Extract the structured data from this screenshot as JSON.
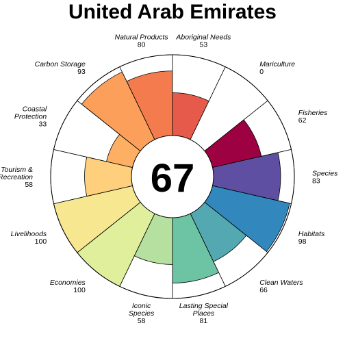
{
  "chart_data": {
    "type": "flower",
    "title": "United Arab Emirates",
    "center_score": "67",
    "max_score": 100,
    "petals": [
      {
        "label": [
          "Natural Products"
        ],
        "value": 80,
        "color": "#f47b4d"
      },
      {
        "label": [
          "Aboriginal Needs"
        ],
        "value": 53,
        "color": "#e65a4b"
      },
      {
        "label": [
          "Mariculture"
        ],
        "value": 0,
        "color": "#d53e4f"
      },
      {
        "label": [
          "Fisheries"
        ],
        "value": 62,
        "color": "#9e0142"
      },
      {
        "label": [
          "Species"
        ],
        "value": 83,
        "color": "#5e4fa2"
      },
      {
        "label": [
          "Habitats"
        ],
        "value": 98,
        "color": "#3288bd"
      },
      {
        "label": [
          "Clean Waters"
        ],
        "value": 66,
        "color": "#53a8b2"
      },
      {
        "label": [
          "Lasting Special",
          "Places"
        ],
        "value": 81,
        "color": "#6cc4a4"
      },
      {
        "label": [
          "Iconic",
          "Species"
        ],
        "value": 58,
        "color": "#b6e0a0"
      },
      {
        "label": [
          "Economies"
        ],
        "value": 100,
        "color": "#dfef9c"
      },
      {
        "label": [
          "Livelihoods"
        ],
        "value": 100,
        "color": "#f7e790"
      },
      {
        "label": [
          "Tourism &",
          "Recreation"
        ],
        "value": 58,
        "color": "#fecf7c"
      },
      {
        "label": [
          "Coastal",
          "Protection"
        ],
        "value": 33,
        "color": "#fdb063"
      },
      {
        "label": [
          "Carbon Storage"
        ],
        "value": 93,
        "color": "#fb9f5b"
      }
    ]
  }
}
